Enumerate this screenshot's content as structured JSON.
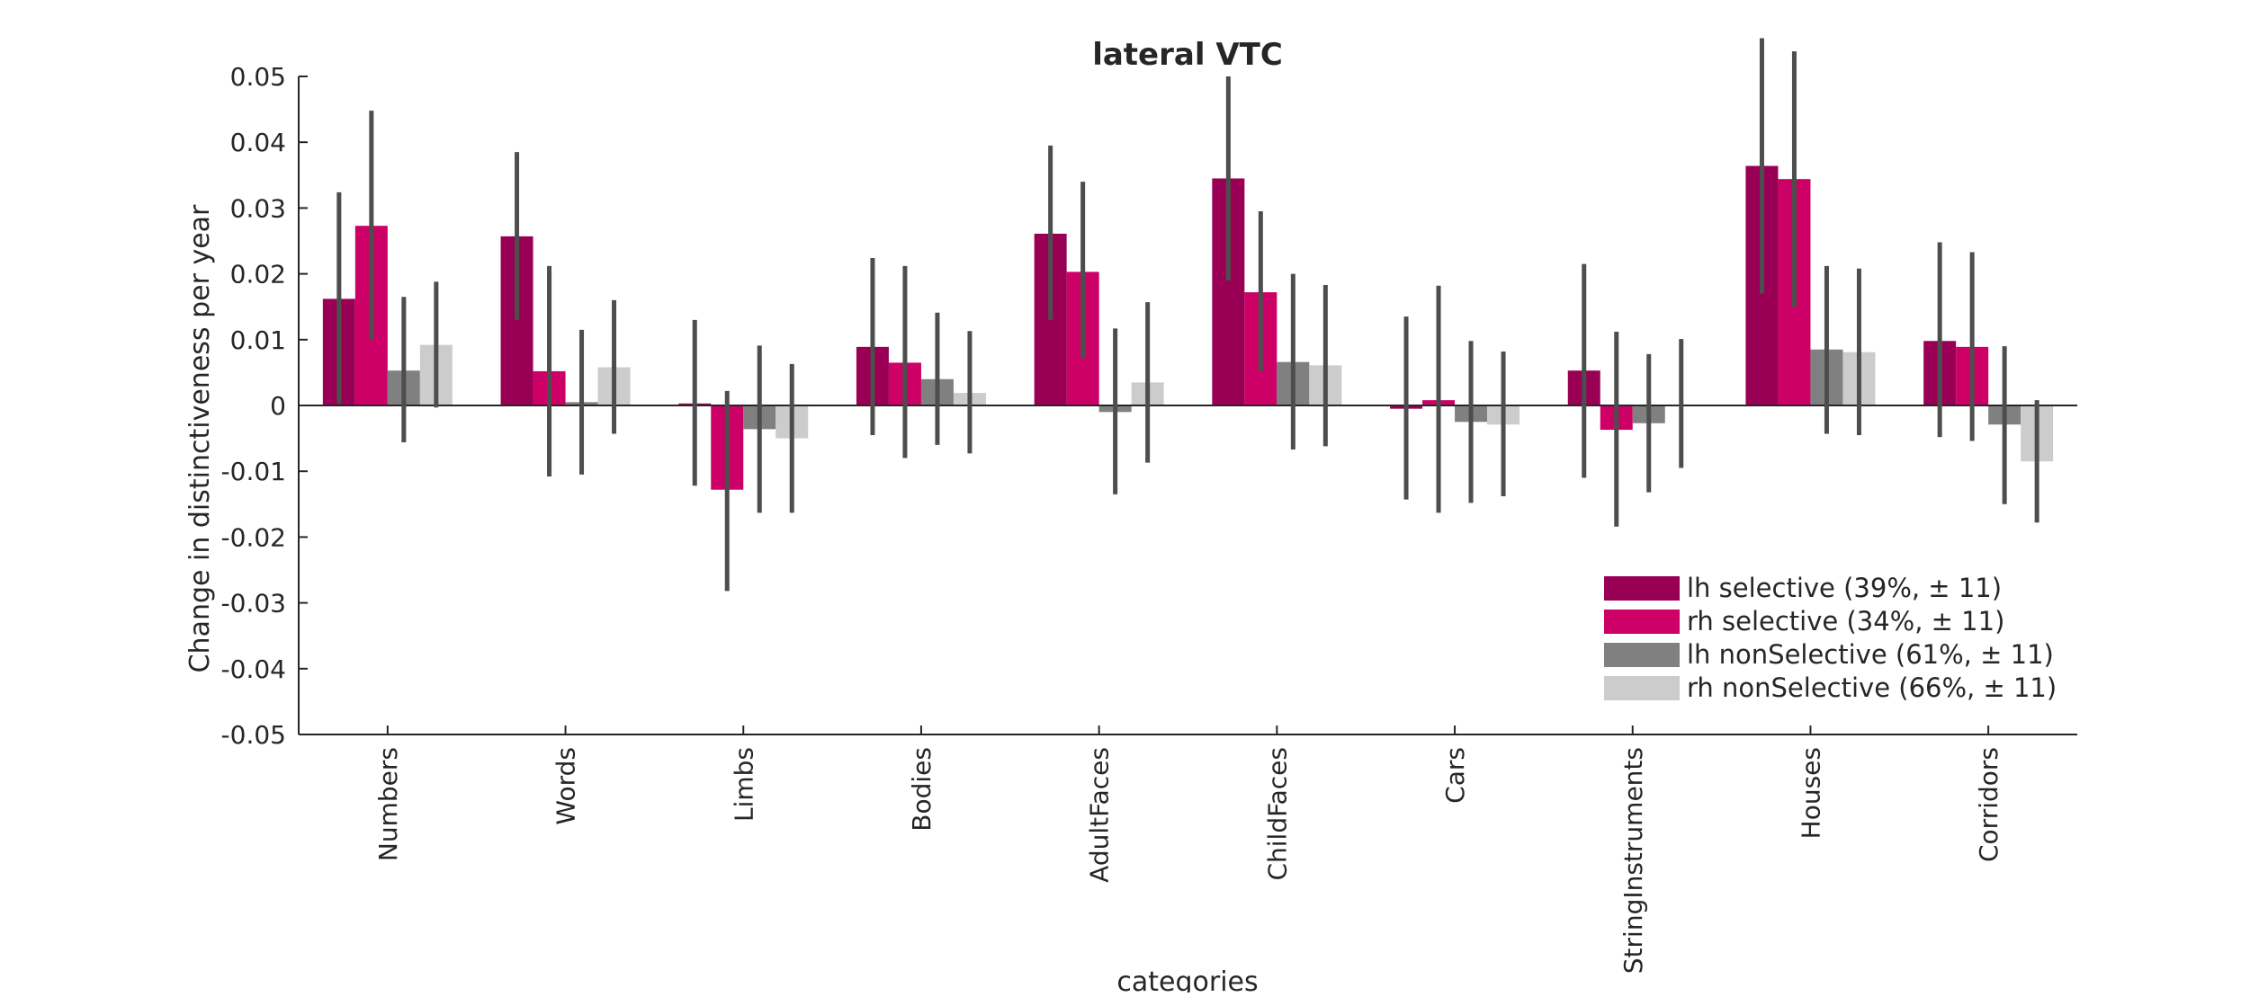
{
  "chart_data": {
    "type": "bar",
    "title": "lateral VTC",
    "xlabel": "categories",
    "ylabel": "Change in distinctiveness per year",
    "ylim": [
      -0.05,
      0.05
    ],
    "yticks": [
      0.05,
      0.04,
      0.03,
      0.02,
      0.01,
      0,
      -0.01,
      -0.02,
      -0.03,
      -0.04,
      -0.05
    ],
    "ytick_labels": [
      "0.05",
      "0.04",
      "0.03",
      "0.02",
      "0.01",
      "0",
      "-0.01",
      "-0.02",
      "-0.03",
      "-0.04",
      "-0.05"
    ],
    "categories": [
      "Numbers",
      "Words",
      "Limbs",
      "Bodies",
      "AdultFaces",
      "ChildFaces",
      "Cars",
      "StringInstruments",
      "Houses",
      "Corridors"
    ],
    "series": [
      {
        "name": "lh selective (39%, ± 11)",
        "color": "#990055",
        "values": [
          0.0162,
          0.0257,
          0.0003,
          0.0089,
          0.0261,
          0.0345,
          -0.0005,
          0.0053,
          0.0364,
          0.0098
        ],
        "err_low": [
          0.0003,
          0.013,
          -0.0122,
          -0.0045,
          0.013,
          0.019,
          -0.0143,
          -0.011,
          0.017,
          -0.0048
        ],
        "err_high": [
          0.0324,
          0.0385,
          0.013,
          0.0224,
          0.0395,
          0.05,
          0.0135,
          0.0215,
          0.0558,
          0.0248
        ]
      },
      {
        "name": "rh selective (34%, ± 11)",
        "color": "#cc0066",
        "values": [
          0.0273,
          0.0052,
          -0.0128,
          0.0065,
          0.0203,
          0.0172,
          0.0008,
          -0.0037,
          0.0344,
          0.0089
        ],
        "err_low": [
          0.01,
          -0.0108,
          -0.0282,
          -0.008,
          0.0072,
          0.0052,
          -0.0163,
          -0.0184,
          0.015,
          -0.0054
        ],
        "err_high": [
          0.0448,
          0.0212,
          0.0022,
          0.0212,
          0.034,
          0.0295,
          0.0182,
          0.0112,
          0.0538,
          0.0233
        ]
      },
      {
        "name": "lh nonSelective (61%, ± 11)",
        "color": "#808080",
        "values": [
          0.0053,
          0.0005,
          -0.0036,
          0.004,
          -0.001,
          0.0066,
          -0.0025,
          -0.0027,
          0.0085,
          -0.0029
        ],
        "err_low": [
          -0.0056,
          -0.0105,
          -0.0163,
          -0.006,
          -0.0135,
          -0.0067,
          -0.0148,
          -0.0132,
          -0.0043,
          -0.015
        ],
        "err_high": [
          0.0165,
          0.0115,
          0.0091,
          0.0141,
          0.0117,
          0.02,
          0.0098,
          0.0078,
          0.0212,
          0.009
        ]
      },
      {
        "name": "rh nonSelective (66%, ± 11)",
        "color": "#cccccc",
        "values": [
          0.0092,
          0.0058,
          -0.005,
          0.0019,
          0.0035,
          0.0061,
          -0.0029,
          0.0,
          0.0081,
          -0.0085
        ],
        "err_low": [
          -0.0003,
          -0.0043,
          -0.0163,
          -0.0073,
          -0.0087,
          -0.0062,
          -0.0138,
          -0.0095,
          -0.0045,
          -0.0178
        ],
        "err_high": [
          0.0188,
          0.016,
          0.0063,
          0.0113,
          0.0157,
          0.0183,
          0.0082,
          0.0101,
          0.0208,
          0.0008
        ]
      }
    ],
    "grid": false,
    "legend_position": "lower-right"
  }
}
